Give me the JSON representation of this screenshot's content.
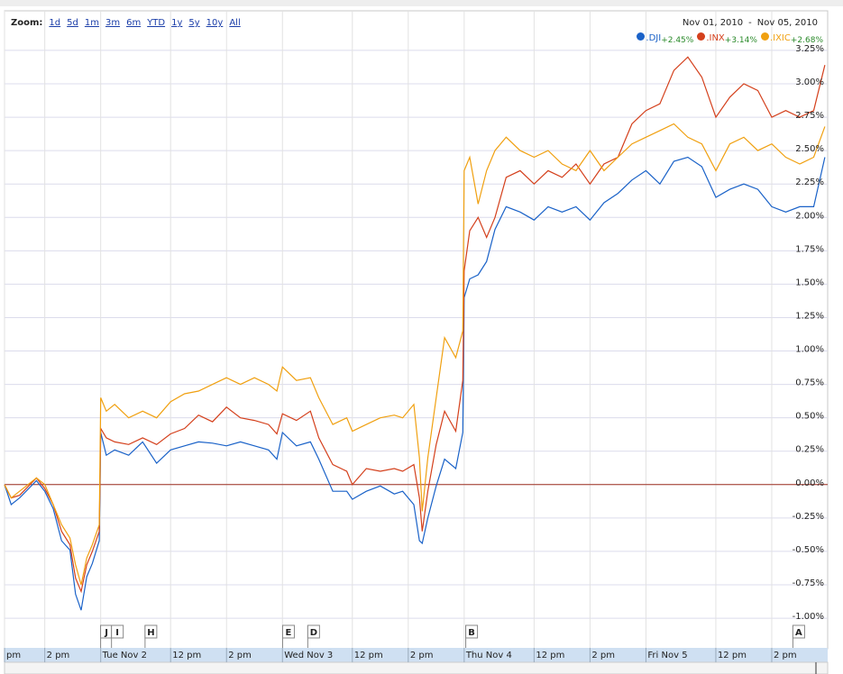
{
  "chart_data": {
    "type": "line",
    "zoom_label": "Zoom:",
    "zoom_options": [
      "1d",
      "5d",
      "1m",
      "3m",
      "6m",
      "YTD",
      "1y",
      "5y",
      "10y",
      "All"
    ],
    "date_range": {
      "start": "Nov 01, 2010",
      "separator": "-",
      "end": "Nov 05, 2010"
    },
    "x": [
      3.06,
      3.3,
      3.6,
      4.2,
      4.5,
      4.8,
      5.1,
      5.4,
      5.6,
      5.8,
      6.0,
      6.2,
      6.45,
      6.5,
      6.7,
      7,
      7.5,
      8,
      8.5,
      9,
      9.5,
      10,
      10.5,
      11,
      11.5,
      12,
      12.5,
      12.8,
      13,
      13.5,
      14,
      14.3,
      14.8,
      15.3,
      15.5,
      16,
      16.5,
      17,
      17.3,
      17.7,
      17.9,
      18.0,
      18.2,
      18.5,
      18.8,
      19.2,
      19.45,
      19.5,
      19.7,
      20,
      20.3,
      20.6,
      21,
      21.5,
      22,
      22.5,
      23,
      23.5,
      24,
      24.5,
      25,
      25.5,
      26,
      26.5,
      27,
      27.5,
      28,
      28.5,
      29,
      29.5,
      30,
      30.5,
      31,
      31.5,
      32,
      32.4
    ],
    "series": [
      {
        "name": ".DJI",
        "change": "+2.45%",
        "color": "#1a62c8",
        "values": [
          0,
          -0.15,
          -0.1,
          0.03,
          -0.05,
          -0.18,
          -0.42,
          -0.49,
          -0.82,
          -0.94,
          -0.69,
          -0.59,
          -0.42,
          0.39,
          0.22,
          0.26,
          0.22,
          0.32,
          0.16,
          0.26,
          0.29,
          0.32,
          0.31,
          0.29,
          0.32,
          0.29,
          0.26,
          0.19,
          0.39,
          0.29,
          0.32,
          0.19,
          -0.05,
          -0.05,
          -0.11,
          -0.05,
          -0.01,
          -0.07,
          -0.05,
          -0.15,
          -0.42,
          -0.44,
          -0.25,
          -0.01,
          0.19,
          0.12,
          0.39,
          1.4,
          1.54,
          1.57,
          1.67,
          1.91,
          2.08,
          2.04,
          1.98,
          2.08,
          2.04,
          2.08,
          1.98,
          2.11,
          2.18,
          2.28,
          2.35,
          2.25,
          2.42,
          2.45,
          2.38,
          2.15,
          2.21,
          2.25,
          2.21,
          2.08,
          2.04,
          2.08,
          2.08,
          2.45
        ]
      },
      {
        "name": ".INX",
        "change": "+3.14%",
        "color": "#d4401c",
        "values": [
          0,
          -0.1,
          -0.08,
          0.05,
          -0.03,
          -0.15,
          -0.35,
          -0.45,
          -0.7,
          -0.8,
          -0.6,
          -0.5,
          -0.35,
          0.42,
          0.35,
          0.32,
          0.3,
          0.35,
          0.3,
          0.38,
          0.42,
          0.52,
          0.47,
          0.58,
          0.5,
          0.48,
          0.45,
          0.38,
          0.53,
          0.48,
          0.55,
          0.35,
          0.15,
          0.1,
          0.0,
          0.12,
          0.1,
          0.12,
          0.1,
          0.15,
          -0.1,
          -0.35,
          -0.05,
          0.3,
          0.55,
          0.4,
          0.78,
          1.6,
          1.9,
          2.0,
          1.85,
          2.0,
          2.3,
          2.35,
          2.25,
          2.35,
          2.3,
          2.4,
          2.25,
          2.4,
          2.45,
          2.7,
          2.8,
          2.85,
          3.1,
          3.2,
          3.05,
          2.75,
          2.9,
          3.0,
          2.95,
          2.75,
          2.8,
          2.75,
          2.8,
          3.14
        ]
      },
      {
        "name": ".IXIC",
        "change": "+2.68%",
        "color": "#f0a010",
        "values": [
          0,
          -0.1,
          -0.05,
          0.05,
          0.0,
          -0.15,
          -0.3,
          -0.4,
          -0.6,
          -0.75,
          -0.55,
          -0.45,
          -0.3,
          0.65,
          0.55,
          0.6,
          0.5,
          0.55,
          0.5,
          0.62,
          0.68,
          0.7,
          0.75,
          0.8,
          0.75,
          0.8,
          0.75,
          0.7,
          0.88,
          0.78,
          0.8,
          0.65,
          0.45,
          0.5,
          0.4,
          0.45,
          0.5,
          0.52,
          0.5,
          0.6,
          0.2,
          -0.2,
          0.2,
          0.65,
          1.1,
          0.95,
          1.15,
          2.35,
          2.45,
          2.1,
          2.35,
          2.5,
          2.6,
          2.5,
          2.45,
          2.5,
          2.4,
          2.35,
          2.5,
          2.35,
          2.45,
          2.55,
          2.6,
          2.65,
          2.7,
          2.6,
          2.55,
          2.35,
          2.55,
          2.6,
          2.5,
          2.55,
          2.45,
          2.4,
          2.45,
          2.68
        ]
      }
    ],
    "change_color": "#2a8a2a",
    "baseline": 0,
    "baseline_color": "#a03020",
    "xlim": [
      3.06,
      32.5
    ],
    "xticks": [
      {
        "value": 3.06,
        "label": "pm"
      },
      {
        "value": 4.5,
        "label": "2 pm"
      },
      {
        "value": 6.5,
        "label": "Tue Nov 2"
      },
      {
        "value": 9,
        "label": "12 pm"
      },
      {
        "value": 11,
        "label": "2 pm"
      },
      {
        "value": 13,
        "label": "Wed Nov 3"
      },
      {
        "value": 15.5,
        "label": "12 pm"
      },
      {
        "value": 17.5,
        "label": "2 pm"
      },
      {
        "value": 19.5,
        "label": "Thu Nov 4"
      },
      {
        "value": 22,
        "label": "12 pm"
      },
      {
        "value": 24,
        "label": "2 pm"
      },
      {
        "value": 26,
        "label": "Fri Nov 5"
      },
      {
        "value": 28.5,
        "label": "12 pm"
      },
      {
        "value": 30.5,
        "label": "2 pm"
      }
    ],
    "ylim": [
      -1.04,
      3.29
    ],
    "yticks": [
      {
        "value": -1,
        "label": "-1.00%"
      },
      {
        "value": -0.75,
        "label": "-0.75%"
      },
      {
        "value": -0.5,
        "label": "-0.50%"
      },
      {
        "value": -0.25,
        "label": "-0.25%"
      },
      {
        "value": 0,
        "label": "0.00%"
      },
      {
        "value": 0.25,
        "label": "0.25%"
      },
      {
        "value": 0.5,
        "label": "0.50%"
      },
      {
        "value": 0.75,
        "label": "0.75%"
      },
      {
        "value": 1,
        "label": "1.00%"
      },
      {
        "value": 1.25,
        "label": "1.25%"
      },
      {
        "value": 1.5,
        "label": "1.50%"
      },
      {
        "value": 1.75,
        "label": "1.75%"
      },
      {
        "value": 2,
        "label": "2.00%"
      },
      {
        "value": 2.25,
        "label": "2.25%"
      },
      {
        "value": 2.5,
        "label": "2.50%"
      },
      {
        "value": 2.75,
        "label": "2.75%"
      },
      {
        "value": 3,
        "label": "3.00%"
      },
      {
        "value": 3.25,
        "label": "3.25%"
      }
    ],
    "grid": true,
    "annotations": [
      {
        "label": "J",
        "x": 6.69
      },
      {
        "label": "I",
        "x": 7.08
      },
      {
        "label": "H",
        "x": 8.28
      },
      {
        "label": "E",
        "x": 13.2
      },
      {
        "label": "D",
        "x": 14.1
      },
      {
        "label": "B",
        "x": 19.75
      },
      {
        "label": "A",
        "x": 31.45
      }
    ]
  }
}
